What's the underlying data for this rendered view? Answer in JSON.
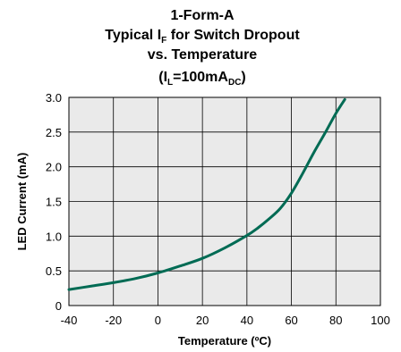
{
  "chart_data": {
    "type": "line",
    "title_line1": "1-Form-A",
    "title_line2": {
      "pre": "Typical I",
      "sub": "F",
      "post": " for Switch Dropout"
    },
    "title_line3": "vs. Temperature",
    "title_line4": {
      "open": "(I",
      "sub1": "L",
      "mid": "=100mA",
      "sub2": "DC",
      "close": ")"
    },
    "xlabel": "Temperature (ºC)",
    "ylabel": "LED Current (mA)",
    "xlim": [
      -40,
      100
    ],
    "ylim": [
      0,
      3.0
    ],
    "x_ticks": [
      "-40",
      "-20",
      "0",
      "20",
      "40",
      "60",
      "80",
      "100"
    ],
    "y_ticks": [
      "0",
      "0.5",
      "1.0",
      "1.5",
      "2.0",
      "2.5",
      "3.0"
    ],
    "x_tick_values": [
      -40,
      -20,
      0,
      20,
      40,
      60,
      80,
      100
    ],
    "y_tick_values": [
      0,
      0.5,
      1.0,
      1.5,
      2.0,
      2.5,
      3.0
    ],
    "grid": true,
    "line_color": "#006b54",
    "series": [
      {
        "x": [
          -40,
          -30,
          -20,
          -10,
          0,
          10,
          20,
          30,
          40,
          45,
          50,
          55,
          60,
          65,
          70,
          75,
          80,
          84
        ],
        "values": [
          0.23,
          0.28,
          0.33,
          0.39,
          0.47,
          0.57,
          0.68,
          0.83,
          1.01,
          1.12,
          1.25,
          1.4,
          1.62,
          1.9,
          2.2,
          2.48,
          2.77,
          2.97
        ]
      }
    ]
  }
}
